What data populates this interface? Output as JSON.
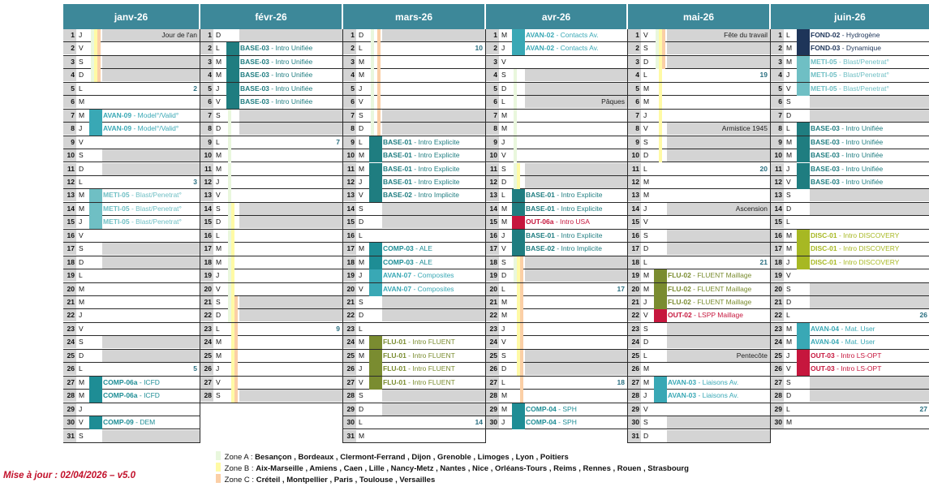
{
  "colors": {
    "header": "#3d8899",
    "weekend": "#d4d4d4",
    "zoneA": "#e9f7dd",
    "zoneB": "#fffaa5",
    "zoneC": "#fbcfa6",
    "avan": "#39a8b5",
    "base": "#1f7d80",
    "meti": "#6fbfc4",
    "comp": "#1e8d95",
    "flu": "#7a8c30",
    "out": "#c6163d",
    "fond": "#1e3559",
    "disc": "#a7b823"
  },
  "months": [
    {
      "name": "janv-26",
      "days": [
        [
          "1",
          "J"
        ],
        [
          "2",
          "V"
        ],
        [
          "3",
          "S"
        ],
        [
          "4",
          "D"
        ],
        [
          "5",
          "L"
        ],
        [
          "6",
          "M"
        ],
        [
          "7",
          "M"
        ],
        [
          "8",
          "J"
        ],
        [
          "9",
          "V"
        ],
        [
          "10",
          "S"
        ],
        [
          "11",
          "D"
        ],
        [
          "12",
          "L"
        ],
        [
          "13",
          "M"
        ],
        [
          "14",
          "M"
        ],
        [
          "15",
          "J"
        ],
        [
          "16",
          "V"
        ],
        [
          "17",
          "S"
        ],
        [
          "18",
          "D"
        ],
        [
          "19",
          "L"
        ],
        [
          "20",
          "M"
        ],
        [
          "21",
          "M"
        ],
        [
          "22",
          "J"
        ],
        [
          "23",
          "V"
        ],
        [
          "24",
          "S"
        ],
        [
          "25",
          "D"
        ],
        [
          "26",
          "L"
        ],
        [
          "27",
          "M"
        ],
        [
          "28",
          "M"
        ],
        [
          "29",
          "J"
        ],
        [
          "30",
          "V"
        ],
        [
          "31",
          "S"
        ]
      ],
      "holidays": {
        "1": "Jour de l'an"
      },
      "weeks": {
        "5": "2",
        "12": "3",
        "26": "5"
      },
      "events": {
        "7": [
          "AVAN-09",
          "Model°/Valid°",
          "avan"
        ],
        "8": [
          "AVAN-09",
          "Model°/Valid°",
          "avan"
        ],
        "13": [
          "METI-05",
          "Blast/Penetrat°",
          "meti"
        ],
        "14": [
          "METI-05",
          "Blast/Penetrat°",
          "meti"
        ],
        "15": [
          "METI-05",
          "Blast/Penetrat°",
          "meti"
        ],
        "27": [
          "COMP-06a",
          "ICFD",
          "comp"
        ],
        "28": [
          "COMP-06a",
          "ICFD",
          "comp"
        ],
        "30": [
          "COMP-09",
          "DEM",
          "comp"
        ]
      }
    },
    {
      "name": "févr-26",
      "days": [
        [
          "1",
          "D"
        ],
        [
          "2",
          "L"
        ],
        [
          "3",
          "M"
        ],
        [
          "4",
          "M"
        ],
        [
          "5",
          "J"
        ],
        [
          "6",
          "V"
        ],
        [
          "7",
          "S"
        ],
        [
          "8",
          "D"
        ],
        [
          "9",
          "L"
        ],
        [
          "10",
          "M"
        ],
        [
          "11",
          "M"
        ],
        [
          "12",
          "J"
        ],
        [
          "13",
          "V"
        ],
        [
          "14",
          "S"
        ],
        [
          "15",
          "D"
        ],
        [
          "16",
          "L"
        ],
        [
          "17",
          "M"
        ],
        [
          "18",
          "M"
        ],
        [
          "19",
          "J"
        ],
        [
          "20",
          "V"
        ],
        [
          "21",
          "S"
        ],
        [
          "22",
          "D"
        ],
        [
          "23",
          "L"
        ],
        [
          "24",
          "M"
        ],
        [
          "25",
          "M"
        ],
        [
          "26",
          "J"
        ],
        [
          "27",
          "V"
        ],
        [
          "28",
          "S"
        ]
      ],
      "holidays": {},
      "weeks": {
        "9": "7",
        "23": "9"
      },
      "events": {
        "2": [
          "BASE-03",
          "Intro Unifiée",
          "base"
        ],
        "3": [
          "BASE-03",
          "Intro Unifiée",
          "base"
        ],
        "4": [
          "BASE-03",
          "Intro Unifiée",
          "base"
        ],
        "5": [
          "BASE-03",
          "Intro Unifiée",
          "base"
        ],
        "6": [
          "BASE-03",
          "Intro Unifiée",
          "base"
        ]
      }
    },
    {
      "name": "mars-26",
      "days": [
        [
          "1",
          "D"
        ],
        [
          "2",
          "L"
        ],
        [
          "3",
          "M"
        ],
        [
          "4",
          "M"
        ],
        [
          "5",
          "J"
        ],
        [
          "6",
          "V"
        ],
        [
          "7",
          "S"
        ],
        [
          "8",
          "D"
        ],
        [
          "9",
          "L"
        ],
        [
          "10",
          "M"
        ],
        [
          "11",
          "M"
        ],
        [
          "12",
          "J"
        ],
        [
          "13",
          "V"
        ],
        [
          "14",
          "S"
        ],
        [
          "15",
          "D"
        ],
        [
          "16",
          "L"
        ],
        [
          "17",
          "M"
        ],
        [
          "18",
          "M"
        ],
        [
          "19",
          "J"
        ],
        [
          "20",
          "V"
        ],
        [
          "21",
          "S"
        ],
        [
          "22",
          "D"
        ],
        [
          "23",
          "L"
        ],
        [
          "24",
          "M"
        ],
        [
          "25",
          "M"
        ],
        [
          "26",
          "J"
        ],
        [
          "27",
          "V"
        ],
        [
          "28",
          "S"
        ],
        [
          "29",
          "D"
        ],
        [
          "30",
          "L"
        ],
        [
          "31",
          "M"
        ]
      ],
      "holidays": {},
      "weeks": {
        "2": "10",
        "30": "14"
      },
      "events": {
        "9": [
          "BASE-01",
          "Intro Explicite",
          "base"
        ],
        "10": [
          "BASE-01",
          "Intro Explicite",
          "base"
        ],
        "11": [
          "BASE-01",
          "Intro Explicite",
          "base"
        ],
        "12": [
          "BASE-01",
          "Intro Explicite",
          "base"
        ],
        "13": [
          "BASE-02",
          "Intro Implicite",
          "base"
        ],
        "17": [
          "COMP-03",
          " ALE",
          "comp"
        ],
        "18": [
          "COMP-03",
          " ALE",
          "comp"
        ],
        "19": [
          "AVAN-07",
          "Composites",
          "avan"
        ],
        "20": [
          "AVAN-07",
          "Composites",
          "avan"
        ],
        "24": [
          "FLU-01",
          "Intro FLUENT",
          "flu"
        ],
        "25": [
          "FLU-01",
          "Intro FLUENT",
          "flu"
        ],
        "26": [
          "FLU-01",
          "Intro FLUENT",
          "flu"
        ],
        "27": [
          "FLU-01",
          "Intro FLUENT",
          "flu"
        ]
      }
    },
    {
      "name": "avr-26",
      "days": [
        [
          "1",
          "M"
        ],
        [
          "2",
          "J"
        ],
        [
          "3",
          "V"
        ],
        [
          "4",
          "S"
        ],
        [
          "5",
          "D"
        ],
        [
          "6",
          "L"
        ],
        [
          "7",
          "M"
        ],
        [
          "8",
          "M"
        ],
        [
          "9",
          "J"
        ],
        [
          "10",
          "V"
        ],
        [
          "11",
          "S"
        ],
        [
          "12",
          "D"
        ],
        [
          "13",
          "L"
        ],
        [
          "14",
          "M"
        ],
        [
          "15",
          "M"
        ],
        [
          "16",
          "J"
        ],
        [
          "17",
          "V"
        ],
        [
          "18",
          "S"
        ],
        [
          "19",
          "D"
        ],
        [
          "20",
          "L"
        ],
        [
          "21",
          "M"
        ],
        [
          "22",
          "M"
        ],
        [
          "23",
          "J"
        ],
        [
          "24",
          "V"
        ],
        [
          "25",
          "S"
        ],
        [
          "26",
          "D"
        ],
        [
          "27",
          "L"
        ],
        [
          "28",
          "M"
        ],
        [
          "29",
          "M"
        ],
        [
          "30",
          "J"
        ]
      ],
      "holidays": {
        "6": "Pâques"
      },
      "weeks": {
        "20": "17",
        "27": "18"
      },
      "events": {
        "1": [
          "AVAN-02",
          "Contacts Av.",
          "avan"
        ],
        "2": [
          "AVAN-02",
          "Contacts Av.",
          "avan"
        ],
        "13": [
          "BASE-01",
          "Intro Explicite",
          "base"
        ],
        "14": [
          "BASE-01",
          "Intro Explicite",
          "base"
        ],
        "15": [
          "OUT-06a",
          "Intro USA",
          "out"
        ],
        "16": [
          "BASE-01",
          "Intro Explicite",
          "base"
        ],
        "17": [
          "BASE-02",
          "Intro Implicite",
          "base"
        ],
        "29": [
          "COMP-04",
          " SPH",
          "comp"
        ],
        "30": [
          "COMP-04",
          " SPH",
          "comp"
        ]
      }
    },
    {
      "name": "mai-26",
      "days": [
        [
          "1",
          "V"
        ],
        [
          "2",
          "S"
        ],
        [
          "3",
          "D"
        ],
        [
          "4",
          "L"
        ],
        [
          "5",
          "M"
        ],
        [
          "6",
          "M"
        ],
        [
          "7",
          "J"
        ],
        [
          "8",
          "V"
        ],
        [
          "9",
          "S"
        ],
        [
          "10",
          "D"
        ],
        [
          "11",
          "L"
        ],
        [
          "12",
          "M"
        ],
        [
          "13",
          "M"
        ],
        [
          "14",
          "J"
        ],
        [
          "15",
          "V"
        ],
        [
          "16",
          "S"
        ],
        [
          "17",
          "D"
        ],
        [
          "18",
          "L"
        ],
        [
          "19",
          "M"
        ],
        [
          "20",
          "M"
        ],
        [
          "21",
          "J"
        ],
        [
          "22",
          "V"
        ],
        [
          "23",
          "S"
        ],
        [
          "24",
          "D"
        ],
        [
          "25",
          "L"
        ],
        [
          "26",
          "M"
        ],
        [
          "27",
          "M"
        ],
        [
          "28",
          "J"
        ],
        [
          "29",
          "V"
        ],
        [
          "30",
          "S"
        ],
        [
          "31",
          "D"
        ]
      ],
      "holidays": {
        "1": "Fête du travail",
        "8": "Armistice 1945",
        "14": "Ascension",
        "25": "Pentecôte"
      },
      "weeks": {
        "4": "19",
        "11": "20",
        "18": "21"
      },
      "events": {
        "19": [
          "FLU-02",
          "FLUENT Maillage",
          "flu"
        ],
        "20": [
          "FLU-02",
          "FLUENT Maillage",
          "flu"
        ],
        "21": [
          "FLU-02",
          "FLUENT Maillage",
          "flu"
        ],
        "22": [
          "OUT-02",
          "LSPP Maillage",
          "out"
        ],
        "27": [
          "AVAN-03",
          "Liaisons Av.",
          "avan"
        ],
        "28": [
          "AVAN-03",
          "Liaisons Av.",
          "avan"
        ]
      }
    },
    {
      "name": "juin-26",
      "days": [
        [
          "1",
          "L"
        ],
        [
          "2",
          "M"
        ],
        [
          "3",
          "M"
        ],
        [
          "4",
          "J"
        ],
        [
          "5",
          "V"
        ],
        [
          "6",
          "S"
        ],
        [
          "7",
          "D"
        ],
        [
          "8",
          "L"
        ],
        [
          "9",
          "M"
        ],
        [
          "10",
          "M"
        ],
        [
          "11",
          "J"
        ],
        [
          "12",
          "V"
        ],
        [
          "13",
          "S"
        ],
        [
          "14",
          "D"
        ],
        [
          "15",
          "L"
        ],
        [
          "16",
          "M"
        ],
        [
          "17",
          "M"
        ],
        [
          "18",
          "J"
        ],
        [
          "19",
          "V"
        ],
        [
          "20",
          "S"
        ],
        [
          "21",
          "D"
        ],
        [
          "22",
          "L"
        ],
        [
          "23",
          "M"
        ],
        [
          "24",
          "M"
        ],
        [
          "25",
          "J"
        ],
        [
          "26",
          "V"
        ],
        [
          "27",
          "S"
        ],
        [
          "28",
          "D"
        ],
        [
          "29",
          "L"
        ],
        [
          "30",
          "M"
        ]
      ],
      "holidays": {},
      "weeks": {
        "22": "26",
        "29": "27"
      },
      "events": {
        "1": [
          "FOND-02",
          "Hydrogène",
          "fond"
        ],
        "2": [
          "FOND-03",
          "Dynamique",
          "fond"
        ],
        "3": [
          "METI-05",
          "Blast/Penetrat°",
          "meti"
        ],
        "4": [
          "METI-05",
          "Blast/Penetrat°",
          "meti"
        ],
        "5": [
          "METI-05",
          "Blast/Penetrat°",
          "meti"
        ],
        "8": [
          "BASE-03",
          "Intro Unifiée",
          "base"
        ],
        "9": [
          "BASE-03",
          "Intro Unifiée",
          "base"
        ],
        "10": [
          "BASE-03",
          "Intro Unifiée",
          "base"
        ],
        "11": [
          "BASE-03",
          "Intro Unifiée",
          "base"
        ],
        "12": [
          "BASE-03",
          "Intro Unifiée",
          "base"
        ],
        "16": [
          "DISC-01",
          "Intro DISCOVERY",
          "disc"
        ],
        "17": [
          "DISC-01",
          "Intro DISCOVERY",
          "disc"
        ],
        "18": [
          "DISC-01",
          "Intro DISCOVERY",
          "disc"
        ],
        "23": [
          "AVAN-04",
          "Mat. User",
          "avan"
        ],
        "24": [
          "AVAN-04",
          "Mat. User",
          "avan"
        ],
        "25": [
          "OUT-03",
          "Intro LS-OPT",
          "out"
        ],
        "26": [
          "OUT-03",
          "Intro LS-OPT",
          "out"
        ]
      }
    }
  ],
  "vacations": {
    "janv-26": {
      "A": [
        [
          1,
          4
        ]
      ],
      "B": [
        [
          1,
          4
        ]
      ],
      "C": [
        [
          1,
          4
        ]
      ]
    },
    "févr-26": {
      "A": [
        [
          7,
          22
        ]
      ],
      "B": [
        [
          14,
          28
        ]
      ],
      "C": [
        [
          21,
          28
        ]
      ]
    },
    "mars-26": {
      "A": [
        [
          1,
          8
        ]
      ],
      "B": [],
      "C": [
        [
          1,
          8
        ]
      ]
    },
    "avr-26": {
      "A": [
        [
          4,
          19
        ]
      ],
      "B": [
        [
          11,
          26
        ]
      ],
      "C": [
        [
          18,
          30
        ]
      ]
    },
    "mai-26": {
      "A": [
        [
          1,
          3
        ]
      ],
      "B": [
        [
          1,
          10
        ]
      ],
      "C": [
        [
          1,
          3
        ]
      ]
    },
    "juin-26": {
      "A": [],
      "B": [],
      "C": []
    }
  },
  "legend": {
    "zoneA_label": "Zone A :",
    "zoneA_cities": "Besançon , Bordeaux , Clermont-Ferrand , Dijon , Grenoble , Limoges , Lyon , Poitiers",
    "zoneB_label": "Zone B :",
    "zoneB_cities": "Aix-Marseille , Amiens , Caen , Lille , Nancy-Metz , Nantes , Nice , Orléans-Tours , Reims , Rennes , Rouen , Strasbourg",
    "zoneC_label": "Zone C :",
    "zoneC_cities": "Créteil , Montpellier , Paris , Toulouse , Versailles"
  },
  "update_note": "Mise à jour : 02/04/2026 – v5.0"
}
